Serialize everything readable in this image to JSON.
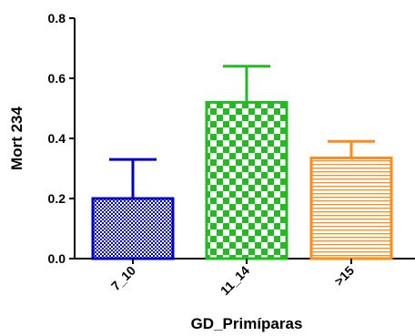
{
  "chart_data": {
    "type": "bar",
    "categories": [
      "7_10",
      "11_14",
      ">15"
    ],
    "values": [
      0.2,
      0.52,
      0.335
    ],
    "errors_upper": [
      0.33,
      0.64,
      0.39
    ],
    "colors": [
      "#0000cc",
      "#22bb22",
      "#ff8c1a"
    ],
    "patterns": [
      "fine-checker",
      "coarse-checker",
      "horizontal-lines"
    ],
    "xlabel": "GD_Primíparas",
    "ylabel": "Mort 234",
    "ylim": [
      0.0,
      0.8
    ],
    "yticks": [
      "0.0",
      "0.2",
      "0.4",
      "0.6",
      "0.8"
    ],
    "grid": false
  }
}
